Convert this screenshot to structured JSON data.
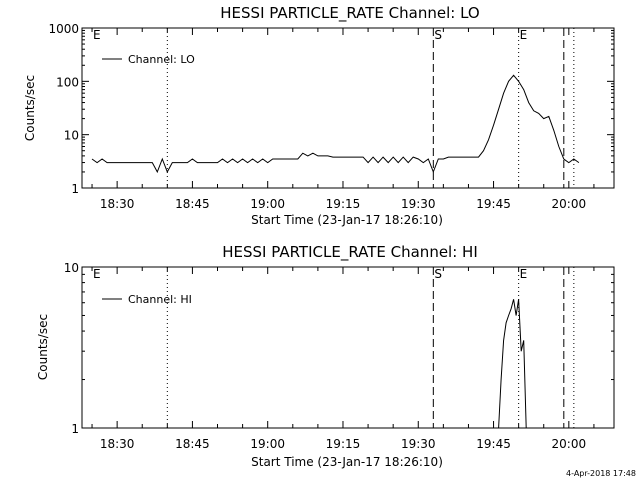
{
  "footer": {
    "timestamp": "4-Apr-2018 17:48"
  },
  "chart_data": [
    {
      "type": "line",
      "title": "HESSI PARTICLE_RATE Channel: LO",
      "xlabel": "Start Time (23-Jan-17 18:26:10)",
      "ylabel": "Counts/sec",
      "yscale": "log",
      "ylim": [
        1,
        1000
      ],
      "yticks": [
        1,
        10,
        100,
        1000
      ],
      "ytick_labels": [
        "1",
        "10",
        "100",
        "1000"
      ],
      "xlim": [
        "18:23",
        "20:09"
      ],
      "xticks": [
        "18:30",
        "18:45",
        "19:00",
        "19:15",
        "19:30",
        "19:45",
        "20:00"
      ],
      "legend": {
        "label": "Channel: LO",
        "position": "top-left"
      },
      "markers": [
        {
          "x": "18:25",
          "label": "E",
          "style": "none"
        },
        {
          "x": "18:40",
          "label": "",
          "style": "dotted"
        },
        {
          "x": "19:33",
          "label": "S",
          "style": "dashed"
        },
        {
          "x": "19:50",
          "label": "E",
          "style": "dotted"
        },
        {
          "x": "19:59",
          "label": "",
          "style": "dashed"
        },
        {
          "x": "20:01",
          "label": "",
          "style": "dotted"
        }
      ],
      "series": [
        {
          "name": "Channel: LO",
          "x": [
            "18:25",
            "18:26",
            "18:27",
            "18:28",
            "18:30",
            "18:33",
            "18:35",
            "18:37",
            "18:38",
            "18:39",
            "18:40",
            "18:41",
            "18:42",
            "18:44",
            "18:45",
            "18:46",
            "18:50",
            "18:51",
            "18:52",
            "18:53",
            "18:54",
            "18:55",
            "18:56",
            "18:57",
            "18:58",
            "18:59",
            "19:00",
            "19:01",
            "19:02",
            "19:03",
            "19:04",
            "19:05",
            "19:06",
            "19:07",
            "19:08",
            "19:09",
            "19:10",
            "19:11",
            "19:12",
            "19:13",
            "19:14",
            "19:15",
            "19:17",
            "19:19",
            "19:20",
            "19:21",
            "19:22",
            "19:23",
            "19:24",
            "19:25",
            "19:26",
            "19:27",
            "19:28",
            "19:29",
            "19:30",
            "19:31",
            "19:32",
            "19:33",
            "19:34",
            "19:35",
            "19:36",
            "19:38",
            "19:40",
            "19:42",
            "19:43",
            "19:44",
            "19:45",
            "19:46",
            "19:47",
            "19:48",
            "19:49",
            "19:50",
            "19:51",
            "19:52",
            "19:53",
            "19:54",
            "19:55",
            "19:56",
            "19:57",
            "19:58",
            "19:59",
            "20:00",
            "20:01",
            "20:02"
          ],
          "y": [
            3.5,
            3.0,
            3.5,
            3.0,
            3.0,
            3.0,
            3.0,
            3.0,
            2.0,
            3.5,
            2.0,
            3.0,
            3.0,
            3.0,
            3.5,
            3.0,
            3.0,
            3.5,
            3.0,
            3.5,
            3.0,
            3.5,
            3.0,
            3.5,
            3.0,
            3.5,
            3.0,
            3.5,
            3.5,
            3.5,
            3.5,
            3.5,
            3.5,
            4.5,
            4.0,
            4.5,
            4.0,
            4.0,
            4.0,
            3.8,
            3.8,
            3.8,
            3.8,
            3.8,
            3.0,
            3.8,
            3.0,
            3.8,
            3.0,
            3.8,
            3.0,
            3.8,
            3.0,
            3.8,
            3.5,
            3.0,
            3.5,
            2.0,
            3.5,
            3.5,
            3.8,
            3.8,
            3.8,
            3.8,
            5,
            8,
            15,
            30,
            60,
            100,
            130,
            100,
            70,
            40,
            28,
            25,
            20,
            22,
            12,
            6,
            3.5,
            3.0,
            3.5,
            3.0
          ]
        }
      ]
    },
    {
      "type": "line",
      "title": "HESSI PARTICLE_RATE Channel: HI",
      "xlabel": "Start Time (23-Jan-17 18:26:10)",
      "ylabel": "Counts/sec",
      "yscale": "log",
      "ylim": [
        1,
        10
      ],
      "yticks": [
        1,
        10
      ],
      "ytick_labels": [
        "1",
        "10"
      ],
      "xlim": [
        "18:23",
        "20:09"
      ],
      "xticks": [
        "18:30",
        "18:45",
        "19:00",
        "19:15",
        "19:30",
        "19:45",
        "20:00"
      ],
      "legend": {
        "label": "Channel: HI",
        "position": "top-left"
      },
      "markers": [
        {
          "x": "18:25",
          "label": "E",
          "style": "none"
        },
        {
          "x": "18:40",
          "label": "",
          "style": "dotted"
        },
        {
          "x": "19:33",
          "label": "S",
          "style": "dashed"
        },
        {
          "x": "19:50",
          "label": "E",
          "style": "dotted"
        },
        {
          "x": "19:59",
          "label": "",
          "style": "dashed"
        },
        {
          "x": "20:01",
          "label": "",
          "style": "dotted"
        }
      ],
      "series": [
        {
          "name": "Channel: HI",
          "x": [
            "19:46",
            "19:46.5",
            "19:47",
            "19:47.5",
            "19:48",
            "19:48.5",
            "19:49",
            "19:49.5",
            "19:50",
            "19:50.5",
            "19:51",
            "19:51.5"
          ],
          "y": [
            1.0,
            2.0,
            3.5,
            4.5,
            5.0,
            5.5,
            6.3,
            5.0,
            6.3,
            3.0,
            3.5,
            1.0
          ]
        }
      ]
    }
  ]
}
